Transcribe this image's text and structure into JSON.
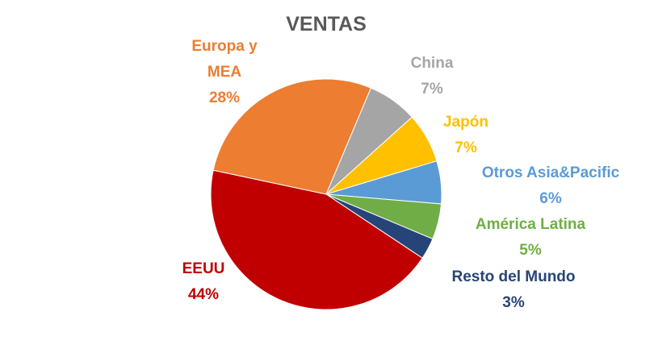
{
  "chart_data": {
    "type": "pie",
    "title": "VENTAS",
    "categories": [
      "Europa y MEA",
      "China",
      "Japón",
      "Otros Asia&Pacific",
      "América Latina",
      "Resto del Mundo",
      "EEUU"
    ],
    "values": [
      28,
      7,
      7,
      6,
      5,
      3,
      44
    ],
    "value_labels": [
      "28%",
      "7%",
      "7%",
      "6%",
      "5%",
      "3%",
      "44%"
    ],
    "colors": [
      "#ed7d31",
      "#a5a5a5",
      "#ffc000",
      "#5b9bd5",
      "#70ad47",
      "#264478",
      "#c00000"
    ]
  }
}
